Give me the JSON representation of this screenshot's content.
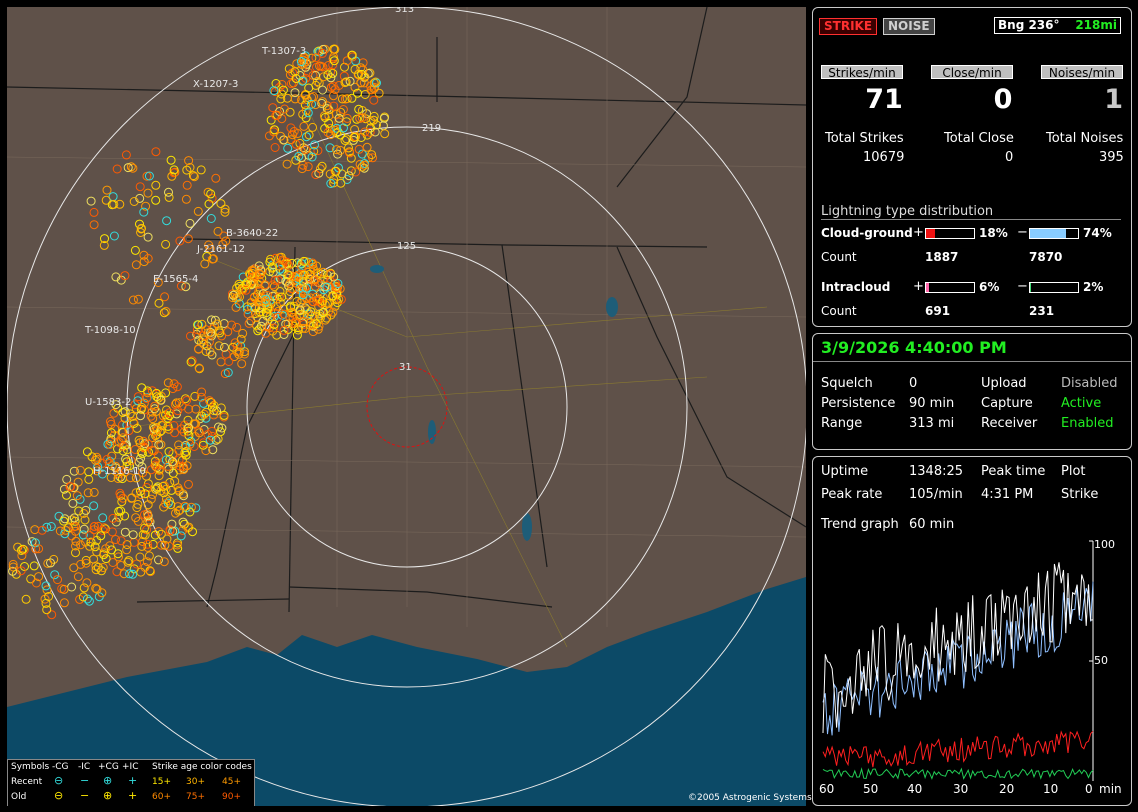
{
  "header": {
    "strike_label": "STRIKE",
    "noise_label": "NOISE",
    "bearing": "Bng 236°",
    "distance": "218mi"
  },
  "rates": {
    "strikes_label": "Strikes/min",
    "close_label": "Close/min",
    "noises_label": "Noises/min",
    "strikes": "71",
    "close": "0",
    "noises": "1"
  },
  "totals": {
    "strikes_label": "Total Strikes",
    "close_label": "Total Close",
    "noises_label": "Total Noises",
    "strikes": "10679",
    "close": "0",
    "noises": "395"
  },
  "distribution": {
    "title": "Lightning type distribution",
    "cg_label": "Cloud-ground",
    "plus": "+",
    "minus": "−",
    "count_label": "Count",
    "cg_pos_pct": "18%",
    "cg_pos_frac": 0.18,
    "cg_neg_pct": "74%",
    "cg_neg_frac": 0.74,
    "cg_pos_count": "1887",
    "cg_neg_count": "7870",
    "ic_label": "Intracloud",
    "ic_pos_pct": "6%",
    "ic_pos_frac": 0.06,
    "ic_neg_pct": "2%",
    "ic_neg_frac": 0.02,
    "ic_pos_count": "691",
    "ic_neg_count": "231"
  },
  "status": {
    "datetime": "3/9/2026 4:40:00 PM",
    "squelch_label": "Squelch",
    "squelch": "0",
    "persistence_label": "Persistence",
    "persistence": "90 min",
    "range_label": "Range",
    "range": "313 mi",
    "upload_label": "Upload",
    "upload": "Disabled",
    "capture_label": "Capture",
    "capture": "Active",
    "receiver_label": "Receiver",
    "receiver": "Enabled"
  },
  "stats": {
    "uptime_label": "Uptime",
    "uptime": "1348:25",
    "peak_time_label": "Peak time",
    "peak_time": "4:31 PM",
    "plot_label": "Plot",
    "plot": "Strike",
    "peak_rate_label": "Peak rate",
    "peak_rate": "105/min",
    "trend_label": "Trend graph",
    "trend": "60 min"
  },
  "trend_axis": {
    "y_top": "100",
    "y_mid": "50",
    "x_ticks": [
      "60",
      "50",
      "40",
      "30",
      "20",
      "10",
      "0"
    ],
    "x_unit": "min"
  },
  "map": {
    "range_labels": [
      "313",
      "219",
      "125",
      "31"
    ],
    "storm_labels": [
      "T-1307-3",
      "X-1207-3",
      "B-3640-22",
      "J-2161-12",
      "E-1565-4",
      "T-1098-10",
      "U-1583-2",
      "H-1116-10"
    ],
    "legend": {
      "symbols": "Symbols",
      "ncg": "-CG",
      "nic": "-IC",
      "pcg": "+CG",
      "pic": "+IC",
      "age_title": "Strike age color codes",
      "recent": "Recent",
      "old": "Old",
      "ages_recent": [
        "15+",
        "30+",
        "45+"
      ],
      "ages_old": [
        "60+",
        "75+",
        "90+"
      ]
    },
    "copyright": "©2005 Astrogenic Systems"
  },
  "colors": {
    "land": "#5f5149",
    "water": "#0c4a67",
    "red": "#ff2020",
    "green": "#22ee22",
    "cyan": "#33dddd",
    "yellow": "#ffe800",
    "orange": "#ff8800"
  }
}
